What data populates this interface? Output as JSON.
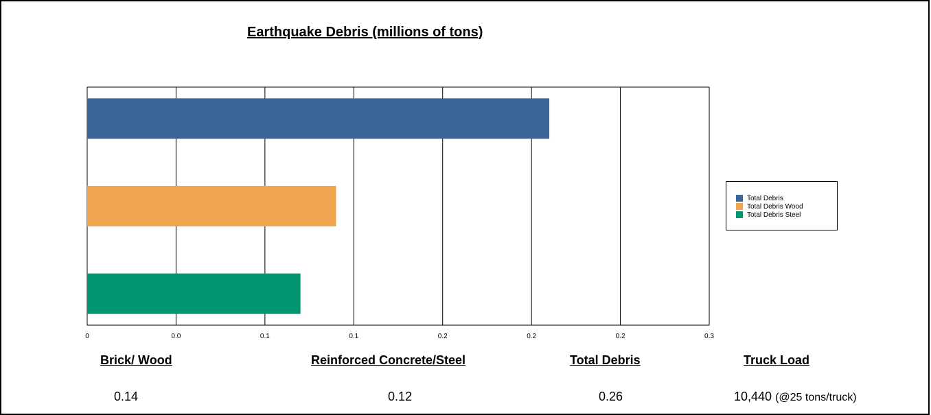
{
  "chart_data": {
    "type": "bar",
    "orientation": "horizontal",
    "title": "Earthquake Debris (millions of tons)",
    "xlabel": "",
    "ylabel": "",
    "xlim": [
      0,
      0.35
    ],
    "x_tick_labels": [
      "0",
      "0.0",
      "0.1",
      "0.1",
      "0.2",
      "0.2",
      "0.2",
      "0.3"
    ],
    "grid": true,
    "legend_position": "right",
    "series": [
      {
        "name": "Total Debris",
        "values": [
          0.26
        ],
        "color": "#3C6698"
      },
      {
        "name": "Total Debris Wood",
        "values": [
          0.14
        ],
        "color": "#EFA44F"
      },
      {
        "name": "Total Debris Steel",
        "values": [
          0.12
        ],
        "color": "#009672"
      }
    ]
  },
  "summary": {
    "brick_wood": {
      "label": "Brick/ Wood",
      "value": "0.14"
    },
    "reinforced": {
      "label": "Reinforced Concrete/Steel",
      "value": "0.12"
    },
    "total": {
      "label": "Total  Debris",
      "value": "0.26"
    },
    "truck": {
      "label": "Truck Load",
      "value": "10,440",
      "note": "(@25 tons/truck)"
    }
  }
}
